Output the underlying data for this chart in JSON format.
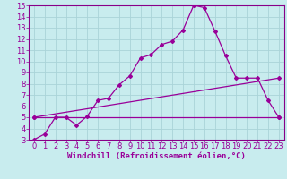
{
  "xlabel": "Windchill (Refroidissement éolien,°C)",
  "bg_color": "#c8ecee",
  "grid_color": "#aad4d8",
  "line_color": "#990099",
  "spine_color": "#880088",
  "xlim": [
    -0.5,
    23.5
  ],
  "ylim": [
    3,
    15
  ],
  "xticks": [
    0,
    1,
    2,
    3,
    4,
    5,
    6,
    7,
    8,
    9,
    10,
    11,
    12,
    13,
    14,
    15,
    16,
    17,
    18,
    19,
    20,
    21,
    22,
    23
  ],
  "yticks": [
    3,
    4,
    5,
    6,
    7,
    8,
    9,
    10,
    11,
    12,
    13,
    14,
    15
  ],
  "line1_x": [
    0,
    1,
    2,
    3,
    4,
    5,
    6,
    7,
    8,
    9,
    10,
    11,
    12,
    13,
    14,
    15,
    16,
    17,
    18,
    19,
    20,
    21,
    22,
    23
  ],
  "line1_y": [
    3.0,
    3.5,
    5.0,
    5.0,
    4.3,
    5.1,
    6.5,
    6.7,
    7.9,
    8.7,
    10.3,
    10.6,
    11.5,
    11.8,
    12.8,
    15.0,
    14.8,
    12.7,
    10.5,
    8.5,
    8.5,
    8.5,
    6.5,
    5.0
  ],
  "line2_x": [
    0,
    23
  ],
  "line2_y": [
    5.0,
    5.0
  ],
  "line3_x": [
    0,
    23
  ],
  "line3_y": [
    5.0,
    8.5
  ],
  "font_size_xlabel": 6.5,
  "font_size_tick": 6.0
}
